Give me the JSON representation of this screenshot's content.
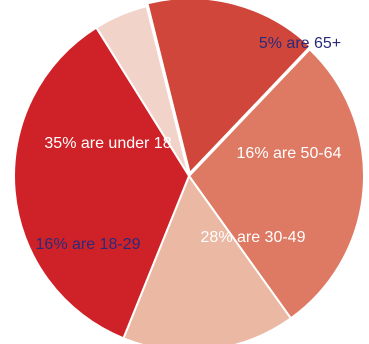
{
  "chart_data": {
    "type": "pie",
    "title": "",
    "slices": [
      {
        "label": "5% are 65+",
        "value": 5,
        "color": "#f2d3c9",
        "label_color": "#2a2a7a"
      },
      {
        "label": "16% are 50-64",
        "value": 16,
        "color": "#d0463a",
        "label_color": "#ffffff"
      },
      {
        "label": "28% are 30-49",
        "value": 28,
        "color": "#de7a63",
        "label_color": "#ffffff"
      },
      {
        "label": "16% are 18-29",
        "value": 16,
        "color": "#eab8a3",
        "label_color": "#2a2a7a"
      },
      {
        "label": "35% are under 18",
        "value": 35,
        "color": "#cf2228",
        "label_color": "#ffffff"
      }
    ]
  }
}
